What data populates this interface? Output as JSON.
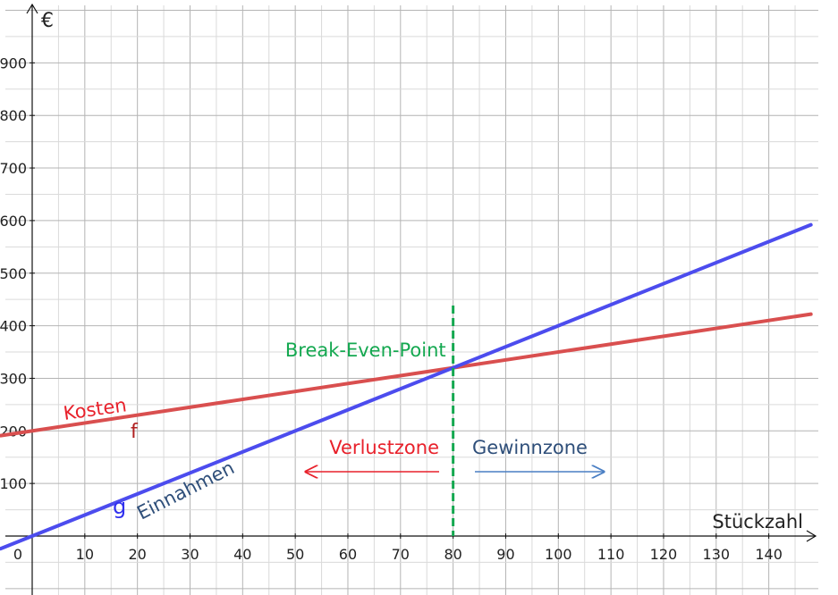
{
  "chart_data": {
    "type": "line",
    "x_axis_label": "Stückzahl",
    "y_axis_label": "€",
    "xlim": [
      -6,
      148
    ],
    "ylim": [
      -110,
      1050
    ],
    "x_ticks": [
      10,
      20,
      30,
      40,
      50,
      60,
      70,
      80,
      90,
      100,
      110,
      120,
      130,
      140
    ],
    "y_ticks": [
      100,
      200,
      300,
      400,
      500,
      600,
      700,
      800,
      900
    ],
    "origin_label": "0",
    "grid": true,
    "series": [
      {
        "name": "f",
        "label": "Kosten",
        "color": "#d94f4f",
        "label_color": "#e8212b",
        "function": "200 + 1.5x",
        "x": [
          -6,
          148
        ],
        "y": [
          191,
          422
        ]
      },
      {
        "name": "g",
        "label": "Einnahmen",
        "color": "#4c4cee",
        "label_color": "#2f4f7a",
        "function": "4x",
        "x": [
          -6,
          148
        ],
        "y": [
          -24,
          592
        ]
      }
    ],
    "break_even": {
      "label": "Break-Even-Point",
      "x": 80,
      "y": 320,
      "color": "#14a850"
    },
    "zones": {
      "loss": {
        "label": "Verlustzone",
        "color": "#e8212b"
      },
      "profit": {
        "label": "Gewinnzone",
        "color": "#2f4f7a",
        "arrow_color": "#4a7fc4"
      }
    }
  }
}
